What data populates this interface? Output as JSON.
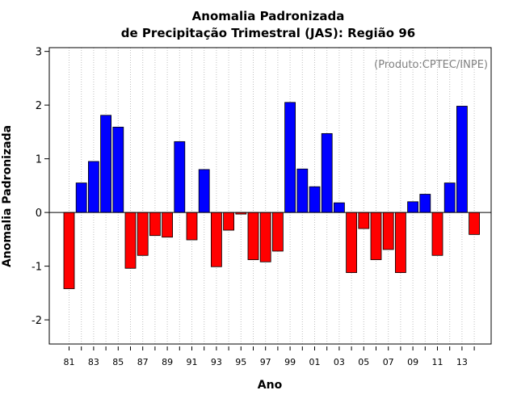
{
  "chart_data": {
    "type": "bar",
    "title": "Anomalia Padronizada",
    "subtitle": "de Precipitação Trimestral (JAS): Região 96",
    "credit": "(Produto:CPTEC/INPE)",
    "xlabel": "Ano",
    "ylabel": "Anomalia Padronizada",
    "ylim": [
      -2.45,
      3.07
    ],
    "yticks": [
      -2,
      -1,
      0,
      1,
      2,
      3
    ],
    "grid": "vertical dotted",
    "categories": [
      "81",
      "82",
      "83",
      "84",
      "85",
      "86",
      "87",
      "88",
      "89",
      "90",
      "91",
      "92",
      "93",
      "94",
      "95",
      "96",
      "97",
      "98",
      "99",
      "00",
      "01",
      "02",
      "03",
      "04",
      "05",
      "06",
      "07",
      "08",
      "09",
      "10",
      "11",
      "12",
      "13",
      "14"
    ],
    "x_tick_labels": [
      "81",
      "83",
      "85",
      "87",
      "89",
      "91",
      "93",
      "95",
      "97",
      "99",
      "01",
      "03",
      "05",
      "07",
      "09",
      "11",
      "13"
    ],
    "values": [
      -1.42,
      0.55,
      0.95,
      1.81,
      1.59,
      -1.04,
      -0.8,
      -0.43,
      -0.46,
      1.32,
      -0.51,
      0.8,
      -1.01,
      -0.33,
      -0.03,
      -0.88,
      -0.92,
      -0.72,
      2.05,
      0.81,
      0.48,
      1.47,
      0.18,
      -1.12,
      -0.3,
      -0.88,
      -0.69,
      -1.12,
      0.2,
      0.34,
      -0.8,
      0.55,
      1.98,
      -0.41
    ],
    "colors": {
      "positive": "#0000ff",
      "negative": "#ff0000",
      "grid": "#c0c0c0",
      "zero_line": "#000000"
    }
  }
}
